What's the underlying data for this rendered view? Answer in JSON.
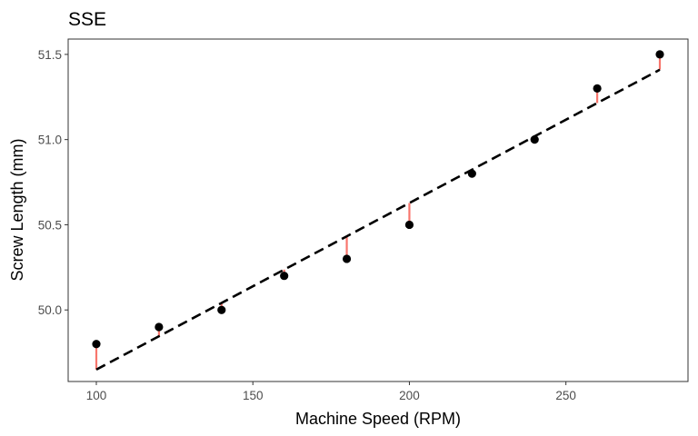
{
  "chart_data": {
    "type": "scatter",
    "title": "SSE",
    "xlabel": "Machine Speed (RPM)",
    "ylabel": "Screw Length (mm)",
    "xlim": [
      91.0,
      289.0
    ],
    "ylim": [
      49.58,
      51.59
    ],
    "x_ticks": [
      100,
      150,
      200,
      250
    ],
    "y_ticks": [
      50.0,
      50.5,
      51.0,
      51.5
    ],
    "y_tick_labels": [
      "50.0",
      "50.5",
      "51.0",
      "51.5"
    ],
    "points": [
      {
        "x": 100,
        "y": 49.8
      },
      {
        "x": 120,
        "y": 49.9
      },
      {
        "x": 140,
        "y": 50.0
      },
      {
        "x": 160,
        "y": 50.2
      },
      {
        "x": 180,
        "y": 50.3
      },
      {
        "x": 200,
        "y": 50.5
      },
      {
        "x": 220,
        "y": 50.8
      },
      {
        "x": 240,
        "y": 51.0
      },
      {
        "x": 260,
        "y": 51.3
      },
      {
        "x": 280,
        "y": 51.5
      }
    ],
    "fit_line": {
      "style": "dashed",
      "color": "#000000",
      "x": [
        100,
        280
      ],
      "y": [
        49.65,
        51.41
      ]
    },
    "residual_color": "#f8766d",
    "point_color": "#000000",
    "grid": false,
    "panel_border_color": "#333333"
  }
}
